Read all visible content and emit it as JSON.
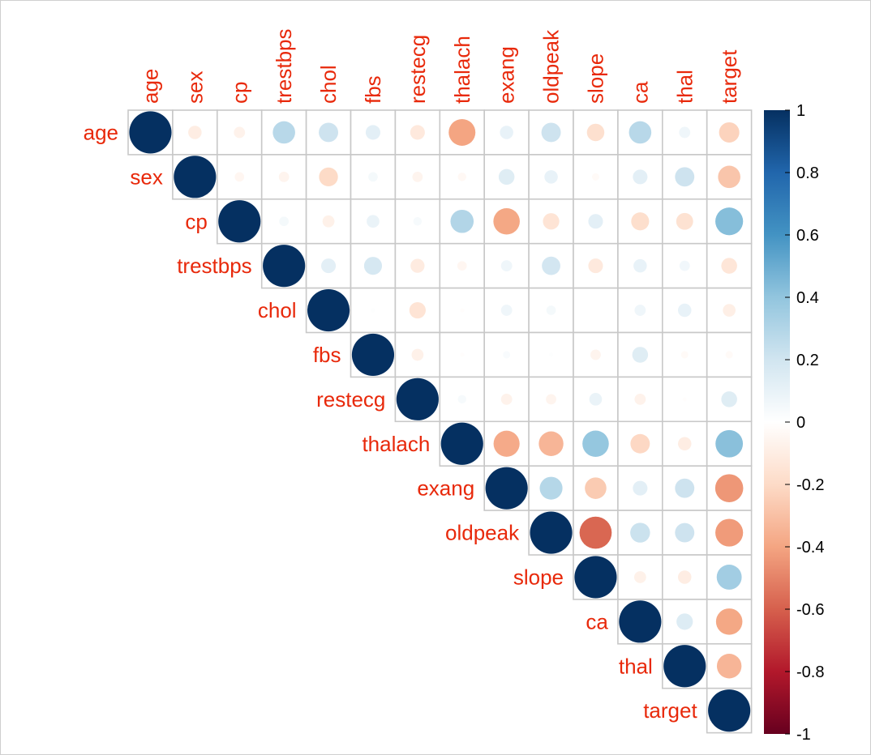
{
  "chart_data": {
    "type": "heatmap",
    "subtype": "correlation-matrix-upper-circles",
    "variables": [
      "age",
      "sex",
      "cp",
      "trestbps",
      "chol",
      "fbs",
      "restecg",
      "thalach",
      "exang",
      "oldpeak",
      "slope",
      "ca",
      "thal",
      "target"
    ],
    "matrix": [
      [
        1,
        -0.1,
        -0.07,
        0.28,
        0.21,
        0.12,
        -0.12,
        -0.4,
        0.1,
        0.21,
        -0.17,
        0.28,
        0.07,
        -0.23
      ],
      [
        -0.1,
        1,
        -0.05,
        -0.06,
        -0.2,
        0.05,
        -0.06,
        -0.04,
        0.14,
        0.1,
        -0.03,
        0.12,
        0.21,
        -0.28
      ],
      [
        -0.07,
        -0.05,
        1,
        0.05,
        -0.08,
        0.09,
        0.04,
        0.3,
        -0.39,
        -0.15,
        0.12,
        -0.18,
        -0.16,
        0.43
      ],
      [
        0.28,
        -0.06,
        0.05,
        1,
        0.12,
        0.18,
        -0.11,
        -0.05,
        0.07,
        0.19,
        -0.12,
        0.1,
        0.06,
        -0.14
      ],
      [
        0.21,
        -0.2,
        -0.08,
        0.12,
        1,
        0.01,
        -0.15,
        -0.01,
        0.07,
        0.05,
        -0.0,
        0.07,
        0.1,
        -0.09
      ],
      [
        0.12,
        0.05,
        0.09,
        0.18,
        0.01,
        1,
        -0.08,
        -0.01,
        0.03,
        0.01,
        -0.06,
        0.14,
        -0.03,
        -0.03
      ],
      [
        -0.12,
        -0.06,
        0.04,
        -0.11,
        -0.15,
        -0.08,
        1,
        0.04,
        -0.07,
        -0.06,
        0.09,
        -0.07,
        -0.01,
        0.14
      ],
      [
        -0.4,
        -0.04,
        0.3,
        -0.05,
        -0.01,
        -0.01,
        0.04,
        1,
        -0.38,
        -0.34,
        0.39,
        -0.21,
        -0.1,
        0.42
      ],
      [
        0.1,
        0.14,
        -0.39,
        0.07,
        0.07,
        0.03,
        -0.07,
        -0.38,
        1,
        0.29,
        -0.26,
        0.12,
        0.21,
        -0.44
      ],
      [
        0.21,
        0.1,
        -0.15,
        0.19,
        0.05,
        0.01,
        -0.06,
        -0.34,
        0.29,
        1,
        -0.58,
        0.22,
        0.21,
        -0.43
      ],
      [
        -0.17,
        -0.03,
        0.12,
        -0.12,
        -0.0,
        -0.06,
        0.09,
        0.39,
        -0.26,
        -0.58,
        1,
        -0.08,
        -0.1,
        0.35
      ],
      [
        0.28,
        0.12,
        -0.18,
        0.1,
        0.07,
        0.14,
        -0.07,
        -0.21,
        0.12,
        0.22,
        -0.08,
        1,
        0.15,
        -0.39
      ],
      [
        0.07,
        0.21,
        -0.16,
        0.06,
        0.1,
        -0.03,
        -0.01,
        -0.1,
        0.21,
        0.21,
        -0.1,
        0.15,
        1,
        -0.34
      ],
      [
        -0.23,
        -0.28,
        0.43,
        -0.14,
        -0.09,
        -0.03,
        0.14,
        0.42,
        -0.44,
        -0.43,
        0.35,
        -0.39,
        -0.34,
        1
      ]
    ],
    "triangle": "upper",
    "label_color": "#e8290b",
    "colorbar": {
      "range": [
        -1,
        1
      ],
      "ticks": [
        1,
        0.8,
        0.6,
        0.4,
        0.2,
        0,
        -0.2,
        -0.4,
        -0.6,
        -0.8,
        -1
      ],
      "tick_labels": [
        "1",
        "0.8",
        "0.6",
        "0.4",
        "0.2",
        "0",
        "-0.2",
        "-0.4",
        "-0.6",
        "-0.8",
        "-1"
      ],
      "palette": [
        "#67001f",
        "#b2182b",
        "#d6604d",
        "#f4a582",
        "#fddbc7",
        "#ffffff",
        "#d1e5f0",
        "#92c5de",
        "#4393c3",
        "#2166ac",
        "#053061"
      ]
    }
  }
}
